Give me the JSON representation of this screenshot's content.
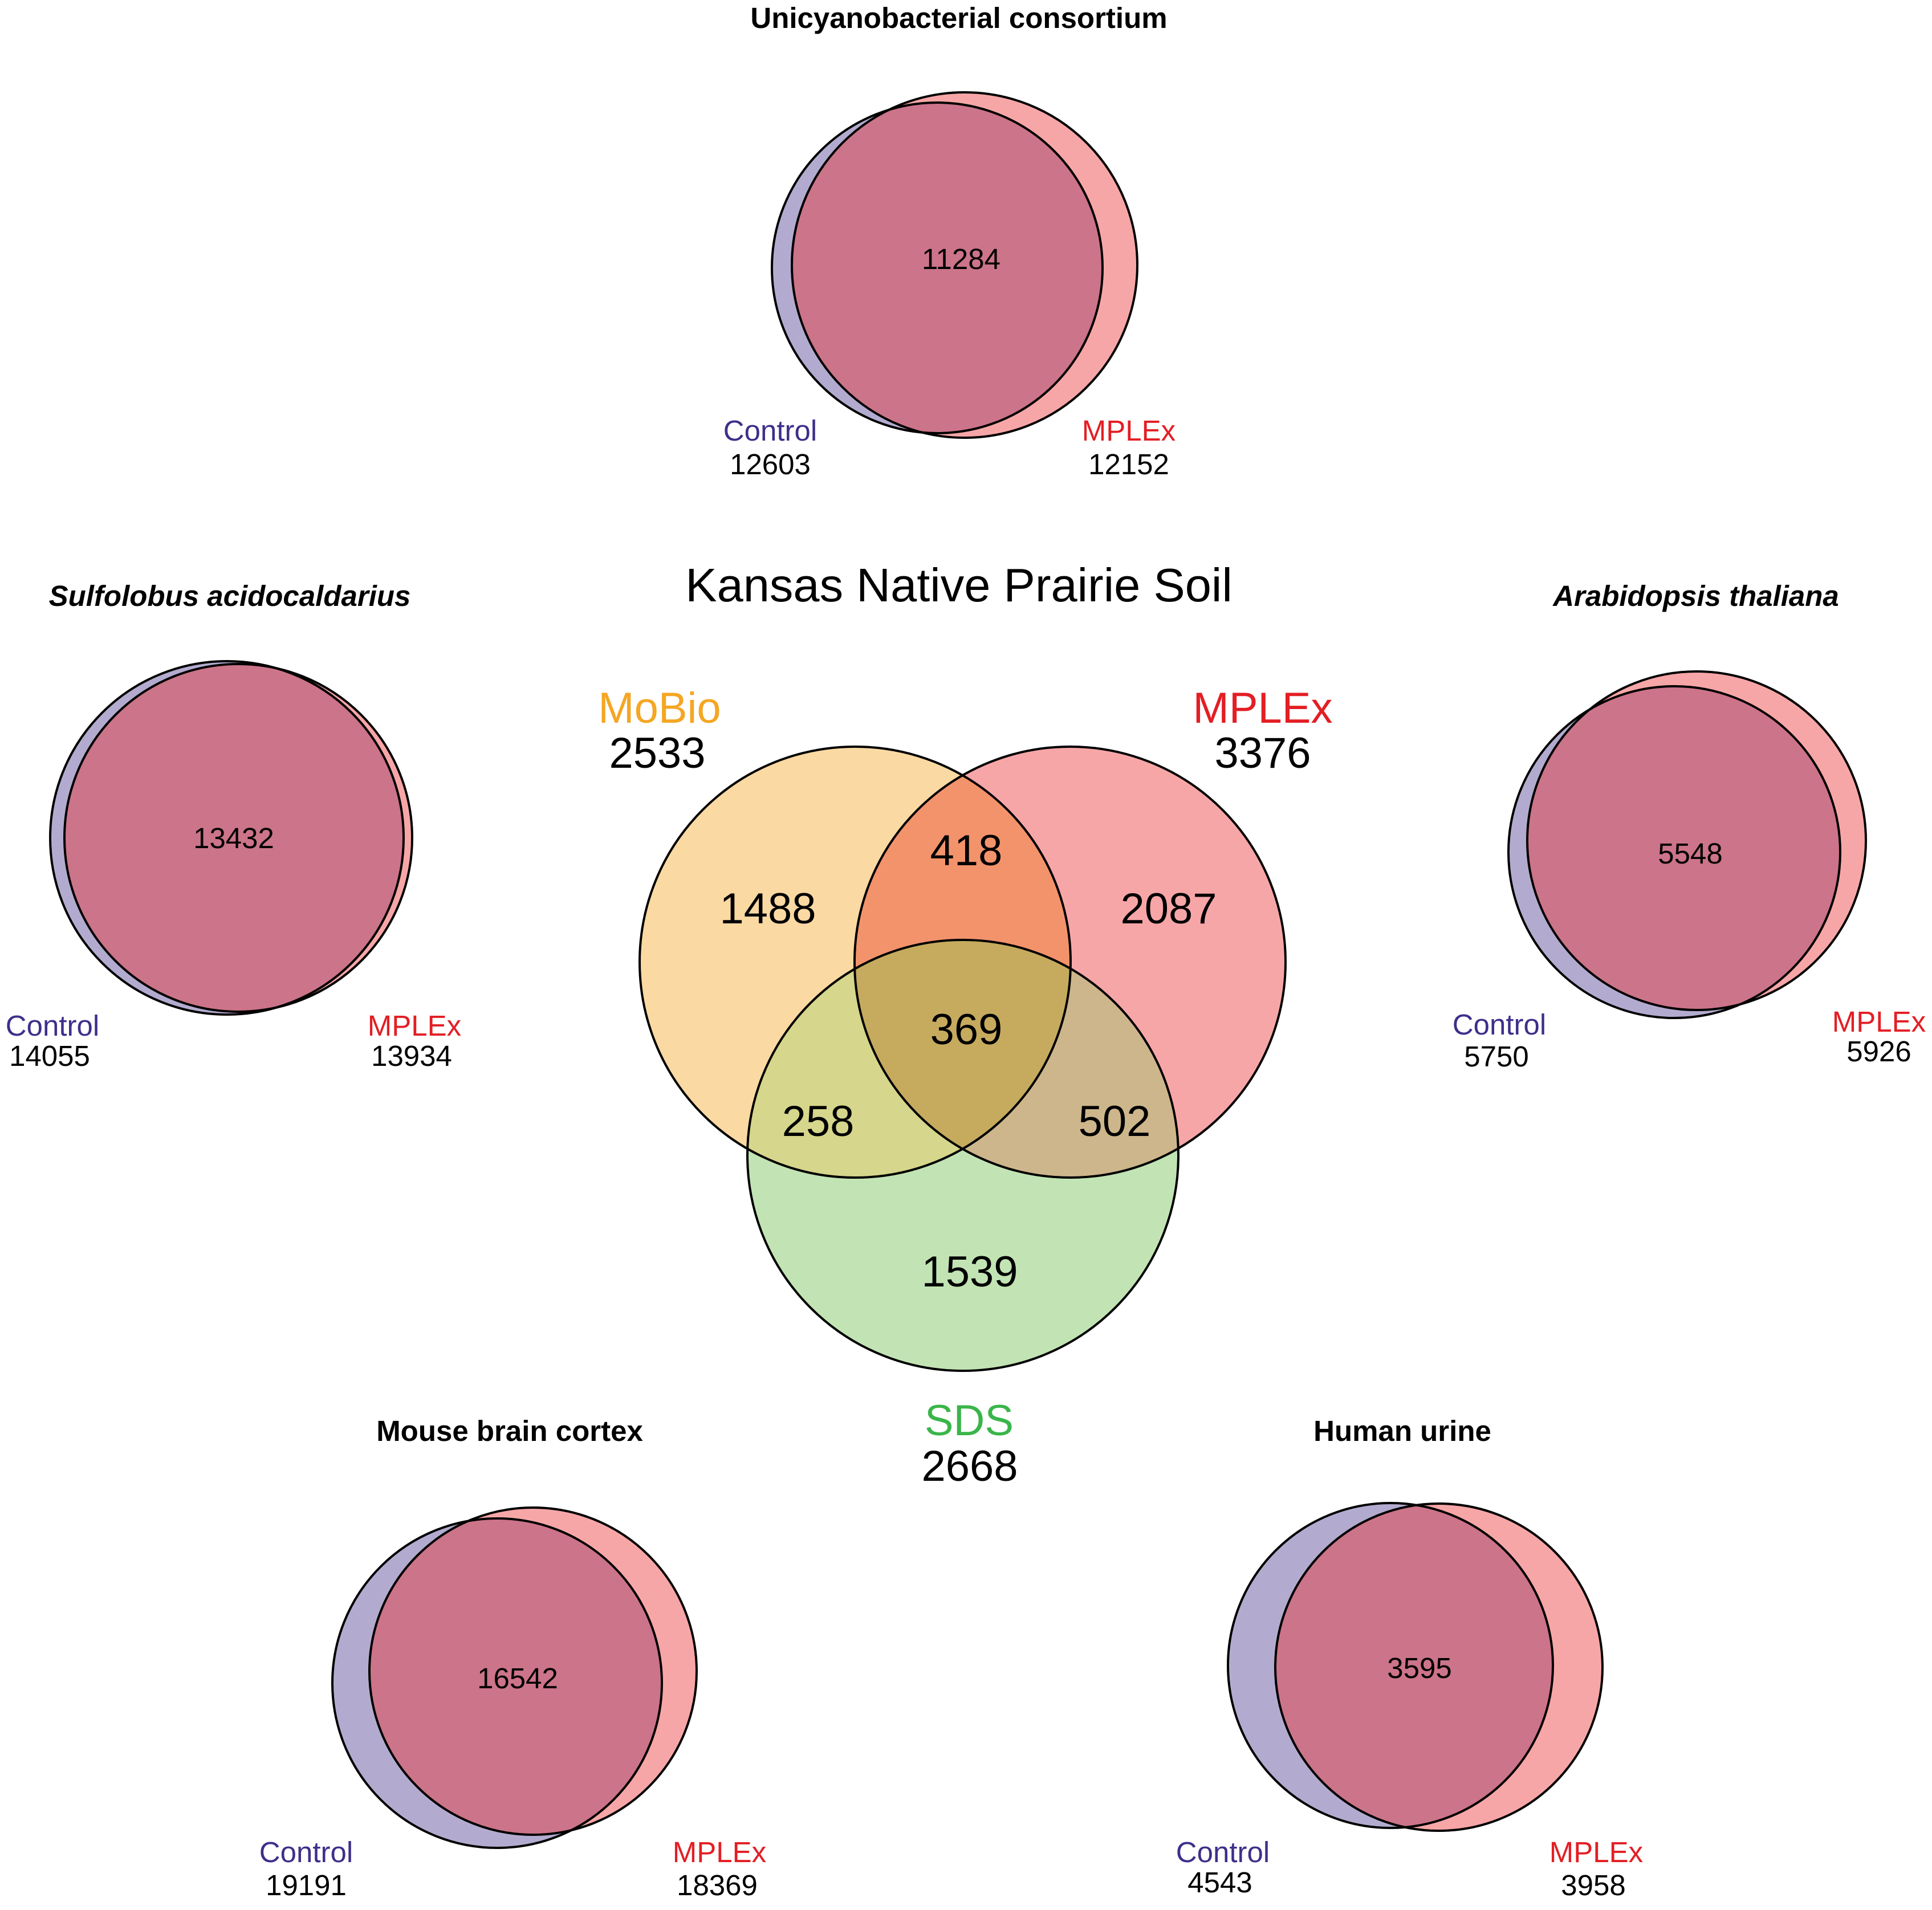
{
  "colors": {
    "control": "#b3abcf",
    "mplex": "#f7a6a7",
    "overlap": "#cc7489",
    "control_label": "#3e2f8a",
    "mplex_label": "#e31e24",
    "mobio": "#fbd9a3",
    "mobio_label": "#f5a623",
    "mplex_big": "#f7a6a8",
    "sds": "#c2e4b4",
    "sds_label": "#3ab54a",
    "mobio_mplex": "#f3936c",
    "mobio_sds": "#d6d68c",
    "mplex_sds": "#cdb68b",
    "all_three": "#c6ab5f"
  },
  "main": {
    "title": "Kansas Native Prairie Soil",
    "mobio": {
      "label": "MoBio",
      "count": "2533",
      "only": "1488"
    },
    "mplex": {
      "label": "MPLEx",
      "count": "3376",
      "only": "2087"
    },
    "sds": {
      "label": "SDS",
      "count": "2668",
      "only": "1539"
    },
    "mobio_mplex": "418",
    "mobio_sds": "258",
    "mplex_sds": "502",
    "all_three": "369"
  },
  "panels": [
    {
      "title": "Unicyanobacterial consortium",
      "control_label": "Control",
      "control_count": "12603",
      "mplex_label": "MPLEx",
      "mplex_count": "12152",
      "overlap": "11284"
    },
    {
      "title": "Sulfolobus acidocaldarius",
      "control_label": "Control",
      "control_count": "14055",
      "mplex_label": "MPLEx",
      "mplex_count": "13934",
      "overlap": "13432"
    },
    {
      "title": "Arabidopsis thaliana",
      "control_label": "Control",
      "control_count": "5750",
      "mplex_label": "MPLEx",
      "mplex_count": "5926",
      "overlap": "5548"
    },
    {
      "title": "Mouse brain cortex",
      "control_label": "Control",
      "control_count": "19191",
      "mplex_label": "MPLEx",
      "mplex_count": "18369",
      "overlap": "16542"
    },
    {
      "title": "Human urine",
      "control_label": "Control",
      "control_count": "4543",
      "mplex_label": "MPLEx",
      "mplex_count": "3958",
      "overlap": "3595"
    }
  ]
}
